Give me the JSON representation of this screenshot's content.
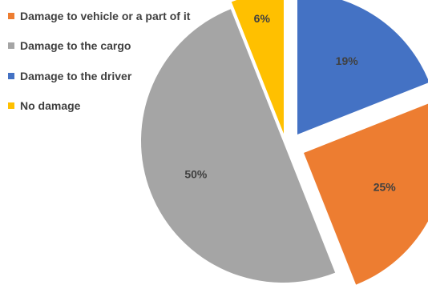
{
  "chart_data": {
    "type": "pie",
    "legend_position": "top-left",
    "exploded": true,
    "slices": [
      {
        "label": "Damage to the driver",
        "value": 19,
        "data_label": "19%",
        "color": "#4472C4"
      },
      {
        "label": "Damage to vehicle or a part of it",
        "value": 25,
        "data_label": "25%",
        "color": "#ED7D31"
      },
      {
        "label": "Damage to the cargo",
        "value": 50,
        "data_label": "50%",
        "color": "#A5A5A5"
      },
      {
        "label": "No damage",
        "value": 6,
        "data_label": "6%",
        "color": "#FFC000"
      }
    ],
    "legend": [
      {
        "label": "Damage to vehicle or a part of it",
        "color": "#ED7D31"
      },
      {
        "label": "Damage to the cargo",
        "color": "#A5A5A5"
      },
      {
        "label": "Damage to the driver",
        "color": "#4472C4"
      },
      {
        "label": "No damage",
        "color": "#FFC000"
      }
    ]
  }
}
